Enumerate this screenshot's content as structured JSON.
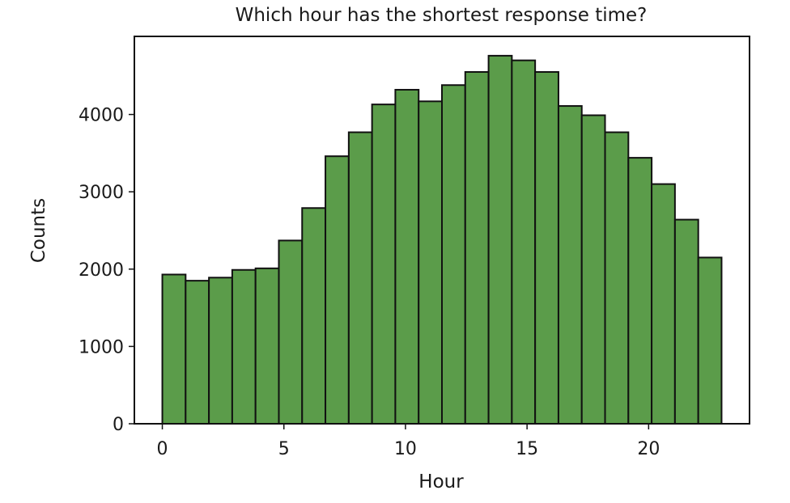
{
  "chart_data": {
    "type": "bar",
    "title": "Which hour has the shortest response time?",
    "xlabel": "Hour",
    "ylabel": "Counts",
    "bin_edges": [
      0,
      0.958,
      1.917,
      2.875,
      3.833,
      4.792,
      5.75,
      6.708,
      7.667,
      8.625,
      9.583,
      10.542,
      11.5,
      12.458,
      13.417,
      14.375,
      15.333,
      16.292,
      17.25,
      18.208,
      19.167,
      20.125,
      21.083,
      22.042,
      23
    ],
    "values": [
      1930,
      1850,
      1890,
      1990,
      2010,
      2370,
      2790,
      3460,
      3770,
      4130,
      4320,
      4170,
      4380,
      4550,
      4760,
      4700,
      4550,
      4110,
      3990,
      3770,
      3440,
      3100,
      2640,
      2150
    ],
    "xlim": [
      -1.15,
      24.15
    ],
    "ylim": [
      0,
      5010
    ],
    "xticks": [
      0,
      5,
      10,
      15,
      20
    ],
    "yticks": [
      0,
      1000,
      2000,
      3000,
      4000
    ],
    "grid": false,
    "bar_color": "#5b9c4a",
    "edge_color": "#111111"
  }
}
